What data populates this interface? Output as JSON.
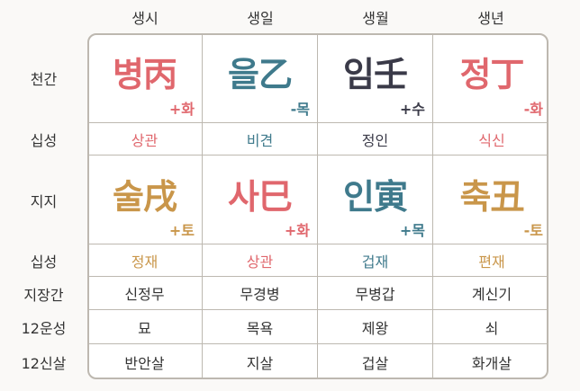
{
  "colors": {
    "fire": "#e0676d",
    "wood": "#3f7a8c",
    "water": "#3a3a48",
    "earth": "#c9964a",
    "text": "#333333",
    "border": "#bdb8b0"
  },
  "headers": [
    "생시",
    "생일",
    "생월",
    "생년"
  ],
  "row_labels": [
    "천간",
    "십성",
    "지지",
    "십성",
    "지장간",
    "12운성",
    "12신살"
  ],
  "stems": [
    {
      "text": "병丙",
      "element": "+화",
      "color": "fire"
    },
    {
      "text": "을乙",
      "element": "-목",
      "color": "wood"
    },
    {
      "text": "임壬",
      "element": "+수",
      "color": "water"
    },
    {
      "text": "정丁",
      "element": "-화",
      "color": "fire"
    }
  ],
  "stem_sipsung": [
    {
      "text": "상관",
      "color": "fire"
    },
    {
      "text": "비견",
      "color": "wood"
    },
    {
      "text": "정인",
      "color": "water"
    },
    {
      "text": "식신",
      "color": "fire"
    }
  ],
  "branches": [
    {
      "text": "술戌",
      "element": "+토",
      "color": "earth"
    },
    {
      "text": "사巳",
      "element": "+화",
      "color": "fire"
    },
    {
      "text": "인寅",
      "element": "+목",
      "color": "wood"
    },
    {
      "text": "축丑",
      "element": "-토",
      "color": "earth"
    }
  ],
  "branch_sipsung": [
    {
      "text": "정재",
      "color": "earth"
    },
    {
      "text": "상관",
      "color": "fire"
    },
    {
      "text": "겁재",
      "color": "wood"
    },
    {
      "text": "편재",
      "color": "earth"
    }
  ],
  "jijanggan": [
    "신정무",
    "무경병",
    "무병갑",
    "계신기"
  ],
  "unseong": [
    "묘",
    "목욕",
    "제왕",
    "쇠"
  ],
  "sinsal": [
    "반안살",
    "지살",
    "겁살",
    "화개살"
  ]
}
